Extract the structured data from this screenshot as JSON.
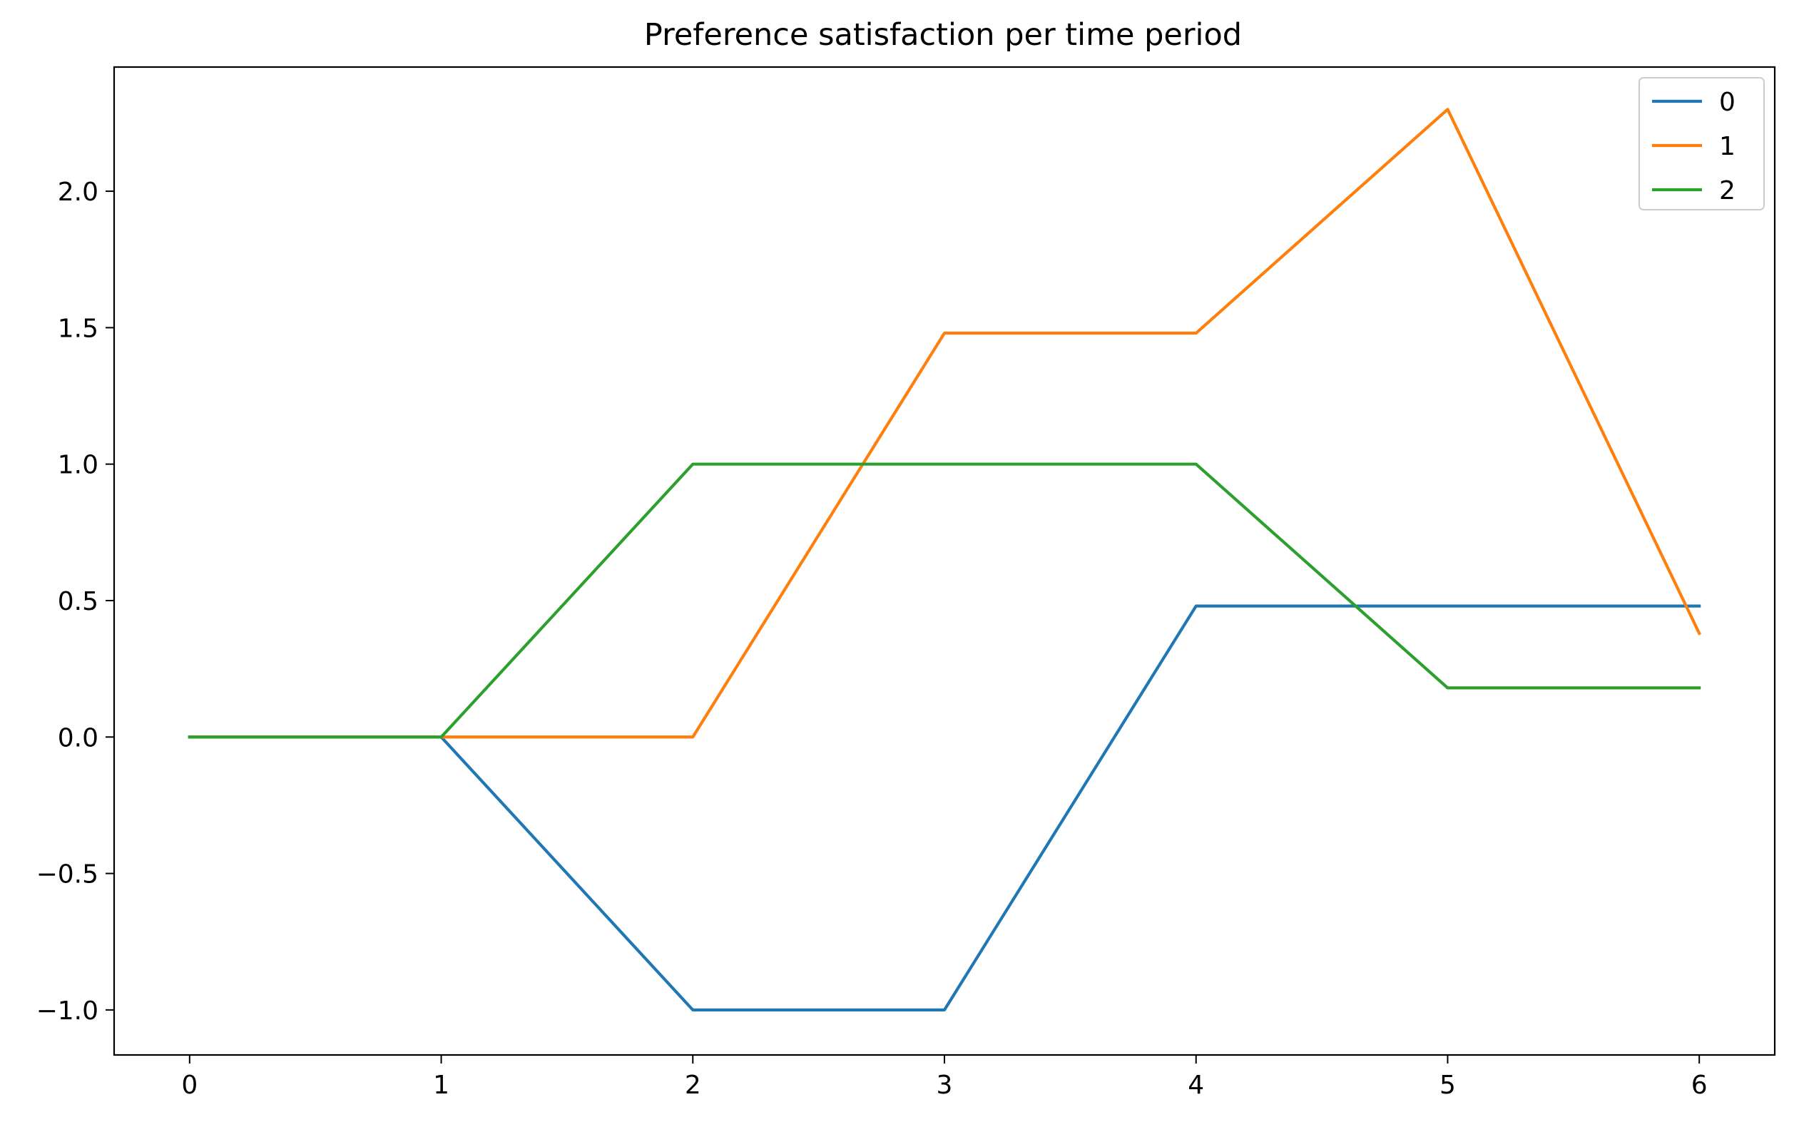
{
  "chart_data": {
    "type": "line",
    "title": "Preference satisfaction per time period",
    "xlabel": "",
    "ylabel": "",
    "x": [
      0,
      1,
      2,
      3,
      4,
      5,
      6
    ],
    "xlim": [
      -0.3,
      6.3
    ],
    "ylim": [
      -1.165,
      2.455
    ],
    "xticks": [
      0,
      1,
      2,
      3,
      4,
      5,
      6
    ],
    "yticks": [
      -1.0,
      -0.5,
      0.0,
      0.5,
      1.0,
      1.5,
      2.0
    ],
    "ytick_labels": [
      "−1.0",
      "−0.5",
      "0.0",
      "0.5",
      "1.0",
      "1.5",
      "2.0"
    ],
    "xtick_labels": [
      "0",
      "1",
      "2",
      "3",
      "4",
      "5",
      "6"
    ],
    "grid": false,
    "legend_position": "top-right",
    "series": [
      {
        "name": "0",
        "color": "#1f77b4",
        "values": [
          0.0,
          0.0,
          -1.0,
          -1.0,
          0.48,
          0.48,
          0.48
        ]
      },
      {
        "name": "1",
        "color": "#ff7f0e",
        "values": [
          0.0,
          0.0,
          0.0,
          1.48,
          1.48,
          2.3,
          0.38
        ]
      },
      {
        "name": "2",
        "color": "#2ca02c",
        "values": [
          0.0,
          0.0,
          1.0,
          1.0,
          1.0,
          0.18,
          0.18
        ]
      }
    ]
  }
}
